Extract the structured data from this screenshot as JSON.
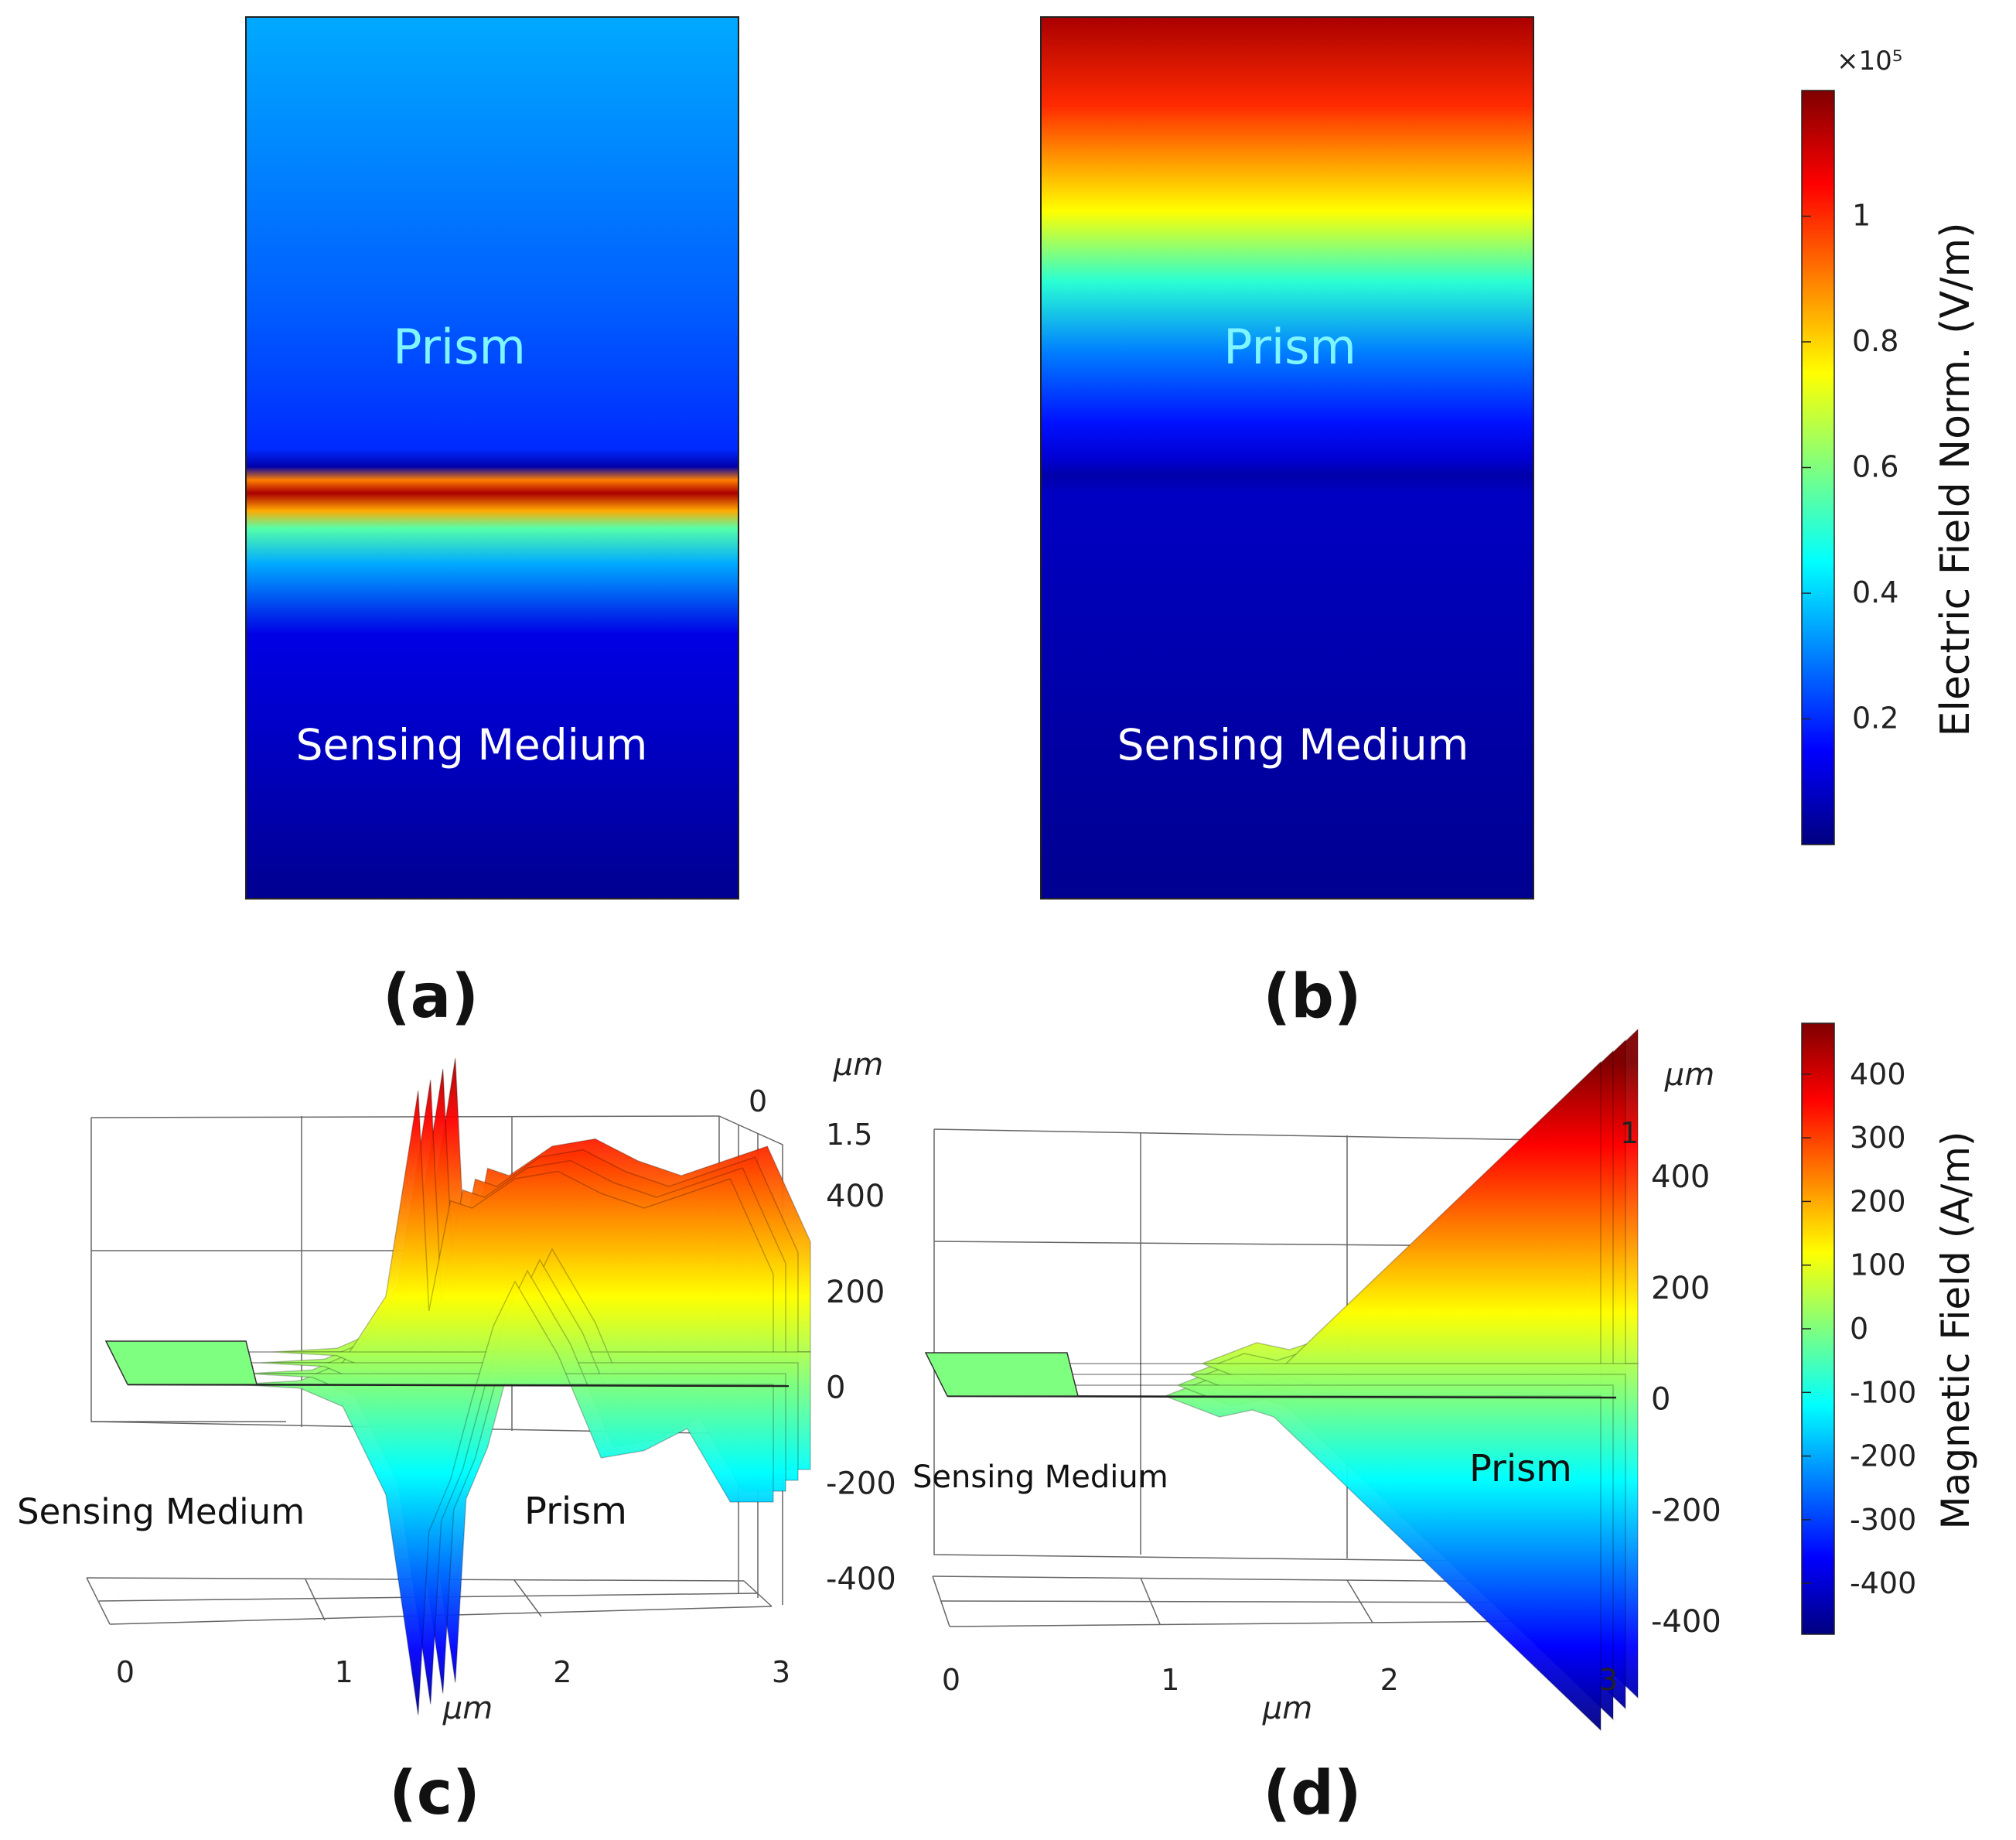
{
  "panels": {
    "a": {
      "caption": "(a)",
      "upper_label": "Prism",
      "lower_label": "Sensing Medium"
    },
    "b": {
      "caption": "(b)",
      "upper_label": "Prism",
      "lower_label": "Sensing Medium"
    },
    "c": {
      "caption": "(c)",
      "left_label": "Sensing Medium",
      "right_label": "Prism"
    },
    "d": {
      "caption": "(d)",
      "left_label": "Sensing Medium",
      "right_label": "Prism"
    }
  },
  "colorbar_electric": {
    "title": "Electric Field Norm. (V/m)",
    "multiplier": "×10⁵",
    "ticks": [
      "1",
      "0.8",
      "0.6",
      "0.4",
      "0.2"
    ],
    "range": [
      0,
      1.2
    ]
  },
  "colorbar_magnetic": {
    "title": "Magnetic Field (A/m)",
    "ticks": [
      "400",
      "300",
      "200",
      "100",
      "0",
      "-100",
      "-200",
      "-300",
      "-400"
    ],
    "range": [
      -480,
      480
    ]
  },
  "colors": {
    "jet": [
      "#00007f",
      "#0000ff",
      "#007fff",
      "#00ffff",
      "#7fff7f",
      "#ffff00",
      "#ff7f00",
      "#ff0000",
      "#7f0000"
    ]
  },
  "chart_data": [
    {
      "type": "heatmap",
      "panel": "a",
      "colorbar": "Electric Field Norm. (V/m)",
      "regions": [
        "Prism",
        "Sensing Medium"
      ],
      "profile": [
        [
          0,
          0.35
        ],
        [
          0.33,
          0.26
        ],
        [
          0.49,
          0.2
        ],
        [
          0.51,
          0.05
        ],
        [
          0.525,
          0.9
        ],
        [
          0.54,
          1.15
        ],
        [
          0.56,
          0.85
        ],
        [
          0.58,
          0.55
        ],
        [
          0.62,
          0.35
        ],
        [
          0.7,
          0.12
        ],
        [
          1,
          0.02
        ]
      ]
    },
    {
      "type": "heatmap",
      "panel": "b",
      "colorbar": "Electric Field Norm. (V/m)",
      "regions": [
        "Prism",
        "Sensing Medium"
      ],
      "profile": [
        [
          0,
          1.15
        ],
        [
          0.1,
          1.0
        ],
        [
          0.22,
          0.75
        ],
        [
          0.3,
          0.5
        ],
        [
          0.38,
          0.3
        ],
        [
          0.46,
          0.17
        ],
        [
          0.5,
          0.1
        ],
        [
          0.52,
          0.05
        ],
        [
          0.54,
          0.08
        ],
        [
          1,
          0.02
        ]
      ]
    },
    {
      "type": "line",
      "panel": "c",
      "xlabel": "μm",
      "depth_label": "μm",
      "x_ticks": [
        "0",
        "1",
        "2",
        "3"
      ],
      "z_ticks": [
        "400",
        "200",
        "0",
        "-200",
        "-400"
      ],
      "depth_ticks": [
        "0",
        "1.5"
      ],
      "zlim": [
        -400,
        400
      ],
      "x": [
        0,
        0.2,
        0.5,
        0.8,
        1.0,
        1.2,
        1.35,
        1.4,
        1.5,
        1.6,
        1.7,
        1.8,
        2.0,
        2.2,
        2.4,
        2.6,
        2.8,
        3.0
      ],
      "series": [
        {
          "values": [
            0,
            0,
            0,
            5,
            30,
            120,
            400,
            100,
            250,
            240,
            260,
            280,
            290,
            260,
            240,
            260,
            280,
            150
          ]
        },
        {
          "values": [
            0,
            0,
            0,
            -5,
            -30,
            -150,
            -450,
            -200,
            -130,
            -20,
            80,
            140,
            40,
            -100,
            -90,
            -60,
            -160,
            -160
          ]
        }
      ]
    },
    {
      "type": "line",
      "panel": "d",
      "xlabel": "μm",
      "depth_label": "μm",
      "x_ticks": [
        "0",
        "1",
        "2",
        "3"
      ],
      "z_ticks": [
        "400",
        "200",
        "0",
        "-200",
        "-400"
      ],
      "depth_ticks": [
        "1"
      ],
      "zlim": [
        -400,
        400
      ],
      "x": [
        0,
        0.5,
        1.0,
        1.25,
        1.4,
        1.5,
        2.0,
        2.5,
        3.0
      ],
      "series": [
        {
          "values": [
            0,
            0,
            0,
            30,
            20,
            30,
            180,
            330,
            480
          ]
        },
        {
          "values": [
            0,
            0,
            0,
            -30,
            -20,
            -30,
            -180,
            -330,
            -480
          ]
        }
      ]
    }
  ]
}
